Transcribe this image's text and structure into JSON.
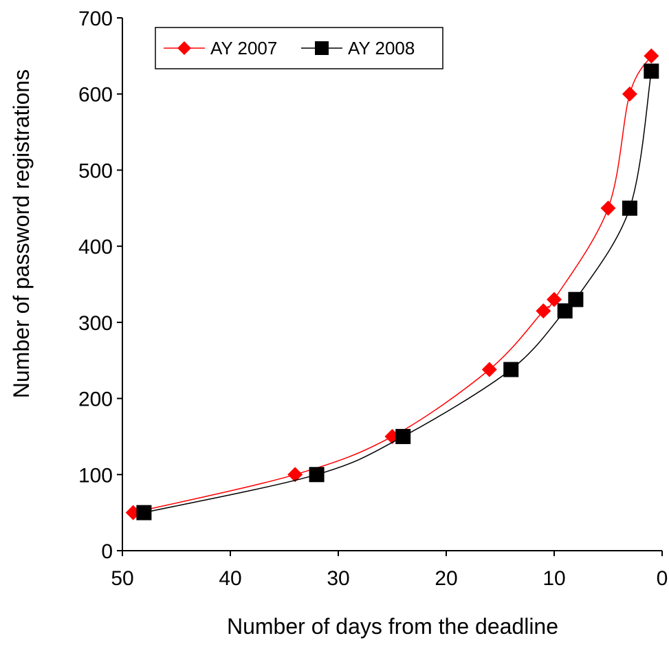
{
  "chart_data": {
    "type": "line",
    "title": "",
    "xlabel": "Number of days from the deadline",
    "ylabel": "Number of password registrations",
    "xlim": [
      50,
      0
    ],
    "ylim": [
      0,
      700
    ],
    "x_reversed": true,
    "x_ticks": [
      50,
      40,
      30,
      20,
      10,
      0
    ],
    "y_ticks": [
      0,
      100,
      200,
      300,
      400,
      500,
      600,
      700
    ],
    "grid": false,
    "legend_position": "top-left",
    "series": [
      {
        "name": "AY 2007",
        "color": "#ff0000",
        "marker": "diamond",
        "points": [
          {
            "x": 49,
            "y": 50
          },
          {
            "x": 34,
            "y": 100
          },
          {
            "x": 25,
            "y": 150
          },
          {
            "x": 16,
            "y": 238
          },
          {
            "x": 11,
            "y": 315
          },
          {
            "x": 10,
            "y": 330
          },
          {
            "x": 5,
            "y": 450
          },
          {
            "x": 3,
            "y": 600
          },
          {
            "x": 1,
            "y": 650
          }
        ]
      },
      {
        "name": "AY 2008",
        "color": "#000000",
        "marker": "square",
        "points": [
          {
            "x": 48,
            "y": 50
          },
          {
            "x": 32,
            "y": 100
          },
          {
            "x": 24,
            "y": 150
          },
          {
            "x": 14,
            "y": 238
          },
          {
            "x": 9,
            "y": 315
          },
          {
            "x": 8,
            "y": 330
          },
          {
            "x": 3,
            "y": 450
          },
          {
            "x": 1,
            "y": 630
          }
        ]
      }
    ]
  }
}
